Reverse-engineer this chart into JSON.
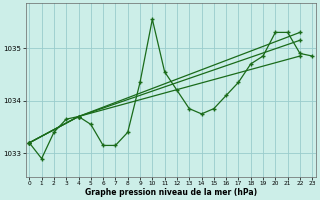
{
  "xlabel": "Graphe pression niveau de la mer (hPa)",
  "x_ticks": [
    0,
    1,
    2,
    3,
    4,
    5,
    6,
    7,
    8,
    9,
    10,
    11,
    12,
    13,
    14,
    15,
    16,
    17,
    18,
    19,
    20,
    21,
    22,
    23
  ],
  "y_ticks": [
    1033,
    1034,
    1035
  ],
  "ylim": [
    1032.55,
    1035.85
  ],
  "xlim": [
    -0.3,
    23.3
  ],
  "bg_color": "#cceee8",
  "grid_color": "#99cccc",
  "line_color": "#1a6b1a",
  "line1_x": [
    0,
    1,
    2,
    3,
    4,
    5,
    6,
    7,
    8,
    9,
    10,
    11,
    12,
    13,
    14,
    15,
    16,
    17,
    18,
    19,
    20,
    21,
    22,
    23
  ],
  "line1_y": [
    1033.2,
    1032.9,
    1033.4,
    1033.65,
    1033.7,
    1033.55,
    1033.15,
    1033.15,
    1033.4,
    1034.35,
    1035.55,
    1034.55,
    1034.2,
    1033.85,
    1033.75,
    1033.85,
    1034.1,
    1034.35,
    1034.7,
    1034.85,
    1035.3,
    1035.3,
    1034.9,
    1034.85
  ],
  "line2_x": [
    0,
    4,
    22
  ],
  "line2_y": [
    1033.2,
    1033.7,
    1034.85
  ],
  "line3_x": [
    0,
    4,
    22
  ],
  "line3_y": [
    1033.2,
    1033.7,
    1035.15
  ],
  "line4_x": [
    0,
    4,
    22
  ],
  "line4_y": [
    1033.2,
    1033.7,
    1035.3
  ]
}
